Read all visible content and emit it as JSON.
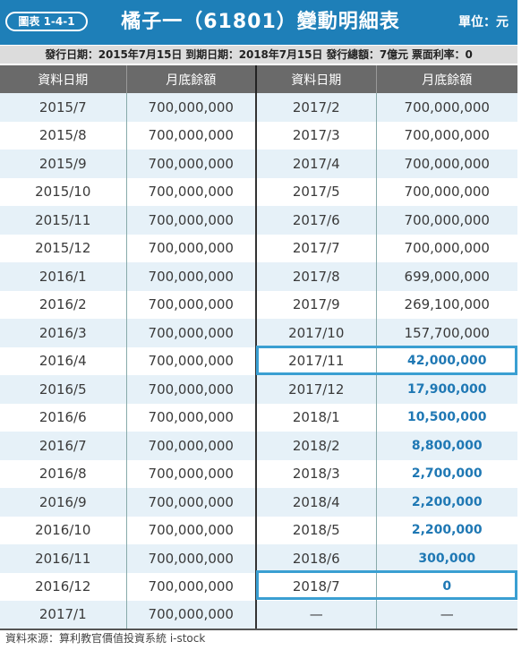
{
  "header": {
    "badge": "圖表 1-4-1",
    "title": "橘子一（61801）變動明細表",
    "unit": "單位：元"
  },
  "info": "發行日期：2015年7月15日  到期日期：2018年7月15日  發行總額：7億元  票面利率：0",
  "table": {
    "columns": [
      "資料日期",
      "月底餘額",
      "資料日期",
      "月底餘額"
    ],
    "rows": [
      {
        "d1": "2015/7",
        "v1": "700,000,000",
        "d2": "2017/2",
        "v2": "700,000,000"
      },
      {
        "d1": "2015/8",
        "v1": "700,000,000",
        "d2": "2017/3",
        "v2": "700,000,000"
      },
      {
        "d1": "2015/9",
        "v1": "700,000,000",
        "d2": "2017/4",
        "v2": "700,000,000"
      },
      {
        "d1": "2015/10",
        "v1": "700,000,000",
        "d2": "2017/5",
        "v2": "700,000,000"
      },
      {
        "d1": "2015/11",
        "v1": "700,000,000",
        "d2": "2017/6",
        "v2": "700,000,000"
      },
      {
        "d1": "2015/12",
        "v1": "700,000,000",
        "d2": "2017/7",
        "v2": "700,000,000"
      },
      {
        "d1": "2016/1",
        "v1": "700,000,000",
        "d2": "2017/8",
        "v2": "699,000,000"
      },
      {
        "d1": "2016/2",
        "v1": "700,000,000",
        "d2": "2017/9",
        "v2": "269,100,000"
      },
      {
        "d1": "2016/3",
        "v1": "700,000,000",
        "d2": "2017/10",
        "v2": "157,700,000"
      },
      {
        "d1": "2016/4",
        "v1": "700,000,000",
        "d2": "2017/11",
        "v2": "42,000,000"
      },
      {
        "d1": "2016/5",
        "v1": "700,000,000",
        "d2": "2017/12",
        "v2": "17,900,000"
      },
      {
        "d1": "2016/6",
        "v1": "700,000,000",
        "d2": "2018/1",
        "v2": "10,500,000"
      },
      {
        "d1": "2016/7",
        "v1": "700,000,000",
        "d2": "2018/2",
        "v2": "8,800,000"
      },
      {
        "d1": "2016/8",
        "v1": "700,000,000",
        "d2": "2018/3",
        "v2": "2,700,000"
      },
      {
        "d1": "2016/9",
        "v1": "700,000,000",
        "d2": "2018/4",
        "v2": "2,200,000"
      },
      {
        "d1": "2016/10",
        "v1": "700,000,000",
        "d2": "2018/5",
        "v2": "2,200,000"
      },
      {
        "d1": "2016/11",
        "v1": "700,000,000",
        "d2": "2018/6",
        "v2": "300,000"
      },
      {
        "d1": "2016/12",
        "v1": "700,000,000",
        "d2": "2018/7",
        "v2": "0"
      },
      {
        "d1": "2017/1",
        "v1": "700,000,000",
        "d2": "—",
        "v2": "—"
      }
    ]
  },
  "source": "資料來源：算利教官價值投資系統 i-stock"
}
